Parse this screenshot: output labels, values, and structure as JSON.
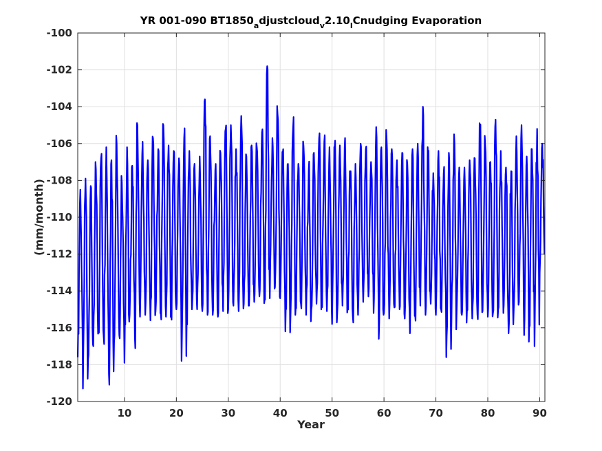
{
  "chart_data": {
    "type": "line",
    "title_parts": [
      {
        "text": "YR 001-090 BT1850",
        "sub": false
      },
      {
        "text": "a",
        "sub": true
      },
      {
        "text": "djustcloud",
        "sub": false
      },
      {
        "text": "v",
        "sub": true
      },
      {
        "text": "2.10",
        "sub": false
      },
      {
        "text": "l",
        "sub": true
      },
      {
        "text": "Cnudging Evaporation",
        "sub": false
      }
    ],
    "xlabel": "Year",
    "ylabel": "(mm/month)",
    "xlim": [
      1,
      91
    ],
    "ylim": [
      -120,
      -100
    ],
    "xticks": [
      10,
      20,
      30,
      40,
      50,
      60,
      70,
      80,
      90
    ],
    "yticks": [
      -120,
      -118,
      -116,
      -114,
      -112,
      -110,
      -108,
      -106,
      -104,
      -102,
      -100
    ],
    "xtick_labels": [
      "10",
      "20",
      "30",
      "40",
      "50",
      "60",
      "70",
      "80",
      "90"
    ],
    "ytick_labels": [
      "-120",
      "-118",
      "-116",
      "-114",
      "-112",
      "-110",
      "-108",
      "-106",
      "-104",
      "-102",
      "-100"
    ],
    "grid": true,
    "line_color": "#0000ff",
    "series": [
      {
        "months_per_year": 12,
        "x_start": 1,
        "year_max": [
          -108.5,
          -107.9,
          -108.3,
          -107.4,
          -106.8,
          -106.2,
          -106.9,
          -106.0,
          -108.1,
          -106.2,
          -107.2,
          -105.0,
          -105.9,
          -106.9,
          -105.7,
          -106.3,
          -105.0,
          -106.1,
          -106.4,
          -106.8,
          -105.7,
          -106.4,
          -107.1,
          -106.7,
          -103.6,
          -105.6,
          -107.4,
          -106.5,
          -105.2,
          -105.0,
          -106.3,
          -104.5,
          -106.7,
          -106.1,
          -106.2,
          -105.4,
          -101.8,
          -105.7,
          -104.4,
          -106.5,
          -107.1,
          -105.1,
          -107.1,
          -106.1,
          -107.4,
          -106.5,
          -105.7,
          -105.9,
          -106.2,
          -106.2,
          -106.1,
          -105.7,
          -107.6,
          -107.1,
          -106.0,
          -106.3,
          -107.0,
          -105.1,
          -106.2,
          -105.7,
          -106.3,
          -106.9,
          -106.5,
          -107.1,
          -106.3,
          -106.0,
          -104.0,
          -106.6,
          -107.6,
          -106.4,
          -107.6,
          -106.5,
          -105.5,
          -107.3,
          -107.3,
          -106.9,
          -106.8,
          -105.1,
          -106.1,
          -107.0,
          -104.7,
          -106.4,
          -107.3,
          -107.5,
          -105.6,
          -105.0,
          -106.7,
          -106.3,
          -105.2,
          -106.0
        ],
        "year_min": [
          -117.6,
          -119.3,
          -117.7,
          -117.0,
          -116.0,
          -116.5,
          -118.5,
          -116.8,
          -116.4,
          -117.9,
          -115.3,
          -116.5,
          -115.4,
          -115.3,
          -115.6,
          -115.1,
          -115.2,
          -115.4,
          -115.3,
          -115.0,
          -117.8,
          -115.4,
          -115.0,
          -115.0,
          -115.1,
          -115.3,
          -115.3,
          -115.4,
          -115.1,
          -115.0,
          -114.8,
          -115.1,
          -114.7,
          -114.8,
          -114.6,
          -114.3,
          -114.5,
          -114.4,
          -113.8,
          -114.4,
          -116.2,
          -115.3,
          -114.9,
          -114.7,
          -115.3,
          -115.0,
          -114.7,
          -114.8,
          -115.1,
          -115.8,
          -115.2,
          -114.8,
          -114.9,
          -115.4,
          -115.3,
          -114.6,
          -114.3,
          -115.2,
          -116.6,
          -115.2,
          -115.5,
          -114.9,
          -115.0,
          -115.5,
          -116.3,
          -115.3,
          -114.8,
          -115.3,
          -114.7,
          -115.3,
          -115.0,
          -117.6,
          -115.7,
          -115.1,
          -115.3,
          -115.0,
          -115.5,
          -115.3,
          -115.1,
          -115.4,
          -115.2,
          -115.0,
          -115.2,
          -116.3,
          -115.0,
          -114.6,
          -116.4,
          -115.4,
          -117.0,
          -113.0
        ]
      }
    ]
  }
}
